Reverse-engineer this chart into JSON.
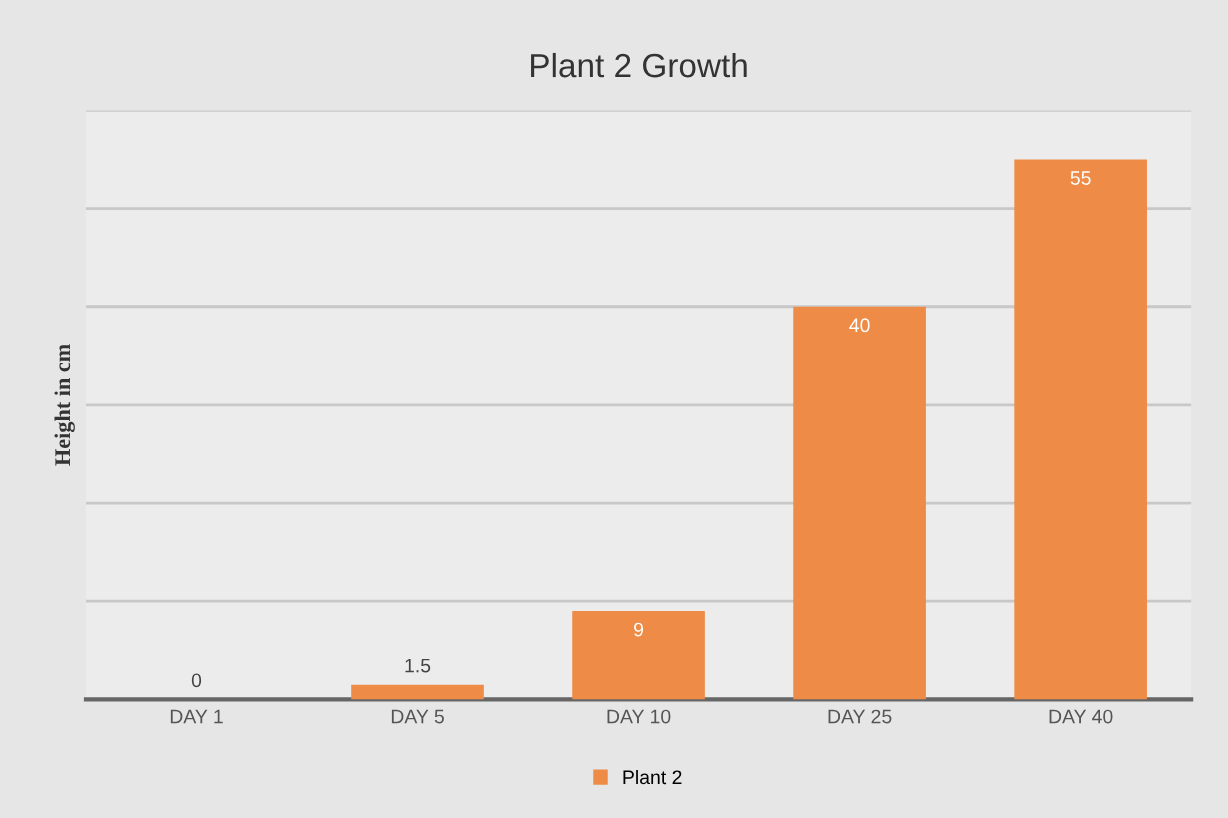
{
  "chart_data": {
    "type": "bar",
    "title": "Plant 2 Growth",
    "ylabel": "Height in cm",
    "categories": [
      "DAY 1",
      "DAY 5",
      "DAY 10",
      "DAY 25",
      "DAY 40"
    ],
    "series": [
      {
        "name": "Plant 2",
        "color": "#ed8b47",
        "values": [
          0,
          1.5,
          9,
          40,
          55
        ]
      }
    ],
    "ylim": [
      0,
      60
    ],
    "yticks": [
      {
        "value": 0,
        "label": null
      },
      {
        "value": 10,
        "label": null
      },
      {
        "value": 20,
        "label": null
      },
      {
        "value": 30,
        "label": null
      },
      {
        "value": 40,
        "label": null
      },
      {
        "value": 50,
        "label": null
      },
      {
        "value": 60,
        "label": null
      }
    ],
    "tick_labels": "x",
    "grid": "y",
    "legend": "bottom",
    "data_labels": true
  }
}
